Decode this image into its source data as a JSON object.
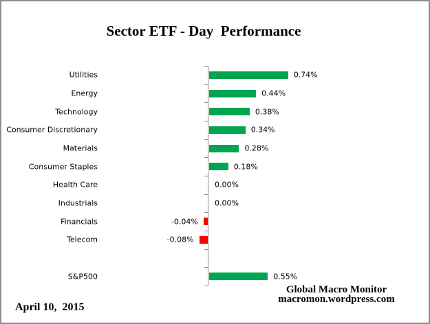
{
  "chart_data": {
    "type": "bar",
    "orientation": "horizontal",
    "title": "Sector ETF - Day  Performance",
    "categories": [
      "Utilities",
      "Energy",
      "Technology",
      "Consumer Discretionary",
      "Materials",
      "Consumer Staples",
      "Health Care",
      "Industrials",
      "Financials",
      "Telecom",
      "",
      "S&P500"
    ],
    "values": [
      0.74,
      0.44,
      0.38,
      0.34,
      0.28,
      0.18,
      0.0,
      0.0,
      -0.04,
      -0.08,
      null,
      0.55
    ],
    "value_labels": [
      "0.74%",
      "0.44%",
      "0.38%",
      "0.34%",
      "0.28%",
      "0.18%",
      "0.00%",
      "0.00%",
      "-0.04%",
      "-0.08%",
      "",
      "0.55%"
    ],
    "xlim": [
      -0.2,
      1.0
    ],
    "grid": false,
    "legend": false,
    "colors": {
      "positive_bar": "#00A64F",
      "negative_bar": "#FF0000",
      "axis": "#8C8C8C",
      "text": "#000000"
    }
  },
  "footer": {
    "date": "April 10,  2015",
    "credits": [
      "Global Macro Monitor",
      "macromon.wordpress.com"
    ]
  }
}
